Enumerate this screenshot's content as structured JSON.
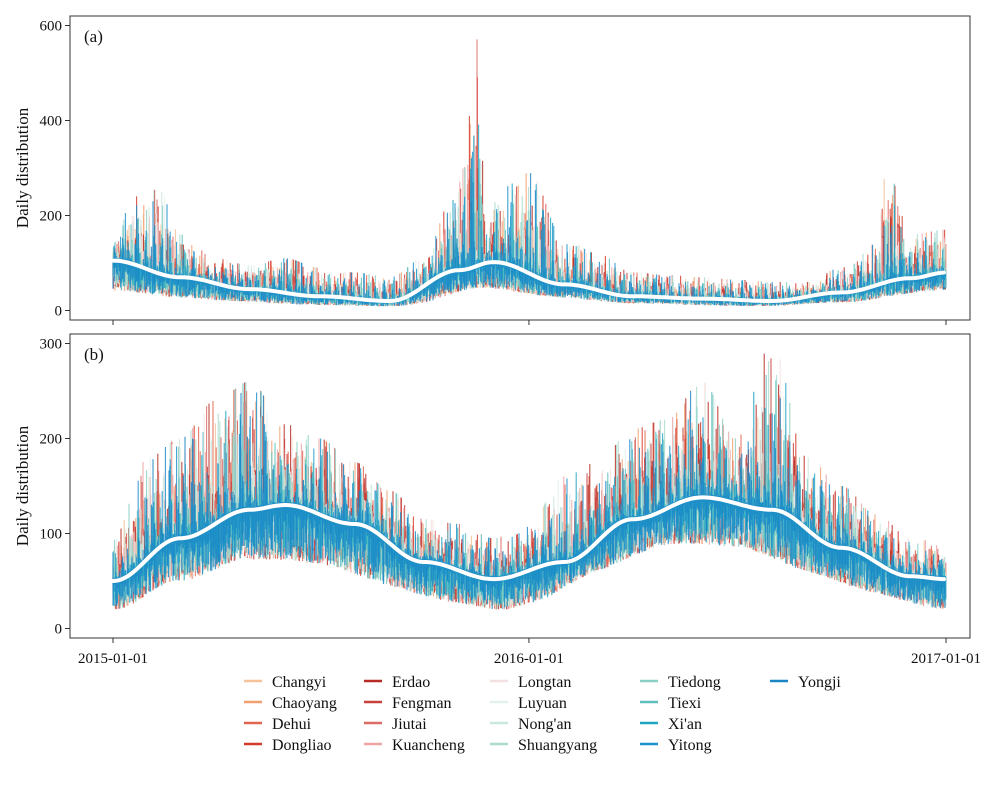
{
  "chart_data": [
    {
      "type": "line",
      "panel_label": "(a)",
      "ylabel": "Daily distribution",
      "xlim": [
        "2015-01-01",
        "2017-01-01"
      ],
      "ylim": [
        -20,
        620
      ],
      "yticks": [
        0,
        200,
        400,
        600
      ],
      "xticks": [],
      "smooth_trend": {
        "x": [
          "2015-01-01",
          "2015-03-01",
          "2015-05-01",
          "2015-07-01",
          "2015-09-01",
          "2015-11-01",
          "2015-12-01",
          "2016-02-01",
          "2016-04-01",
          "2016-06-01",
          "2016-08-01",
          "2016-10-01",
          "2016-12-01",
          "2017-01-01"
        ],
        "y": [
          105,
          70,
          45,
          30,
          20,
          85,
          102,
          55,
          30,
          25,
          20,
          38,
          68,
          80
        ]
      },
      "stations_upper_envelope": {
        "x": [
          "2015-01-01",
          "2015-01-20",
          "2015-02-10",
          "2015-03-01",
          "2015-04-01",
          "2015-05-01",
          "2015-06-01",
          "2015-07-01",
          "2015-08-01",
          "2015-09-01",
          "2015-10-01",
          "2015-10-25",
          "2015-11-05",
          "2015-11-15",
          "2015-11-25",
          "2015-12-10",
          "2016-01-01",
          "2016-02-01",
          "2016-03-01",
          "2016-04-01",
          "2016-05-01",
          "2016-06-01",
          "2016-07-01",
          "2016-08-01",
          "2016-09-01",
          "2016-10-01",
          "2016-11-01",
          "2016-11-10",
          "2016-12-01",
          "2017-01-01"
        ],
        "y": [
          150,
          240,
          255,
          160,
          110,
          95,
          110,
          90,
          80,
          70,
          110,
          230,
          300,
          590,
          200,
          260,
          290,
          150,
          120,
          80,
          75,
          70,
          65,
          60,
          60,
          90,
          140,
          300,
          160,
          170
        ]
      },
      "stations_lower_envelope": {
        "x": [
          "2015-01-01",
          "2015-04-01",
          "2015-07-01",
          "2015-10-01",
          "2015-11-15",
          "2016-01-01",
          "2016-04-01",
          "2016-07-01",
          "2016-10-01",
          "2017-01-01"
        ],
        "y": [
          20,
          10,
          5,
          5,
          30,
          20,
          10,
          5,
          10,
          30
        ]
      }
    },
    {
      "type": "line",
      "panel_label": "(b)",
      "ylabel": "Daily distribution",
      "xlim": [
        "2015-01-01",
        "2017-01-01"
      ],
      "ylim": [
        -10,
        310
      ],
      "yticks": [
        0,
        100,
        200,
        300
      ],
      "xticks": [
        "2015-01-01",
        "2016-01-01",
        "2017-01-01"
      ],
      "smooth_trend": {
        "x": [
          "2015-01-01",
          "2015-03-01",
          "2015-05-01",
          "2015-06-01",
          "2015-08-01",
          "2015-10-01",
          "2015-12-01",
          "2016-02-01",
          "2016-04-01",
          "2016-06-01",
          "2016-08-01",
          "2016-10-01",
          "2016-12-01",
          "2017-01-01"
        ],
        "y": [
          50,
          95,
          125,
          130,
          110,
          70,
          52,
          70,
          115,
          138,
          125,
          85,
          55,
          52
        ]
      },
      "stations_upper_envelope": {
        "x": [
          "2015-01-01",
          "2015-02-01",
          "2015-03-01",
          "2015-04-01",
          "2015-05-01",
          "2015-06-01",
          "2015-07-01",
          "2015-08-01",
          "2015-09-01",
          "2015-10-01",
          "2015-11-01",
          "2015-12-01",
          "2016-01-01",
          "2016-02-01",
          "2016-03-01",
          "2016-04-01",
          "2016-05-01",
          "2016-06-01",
          "2016-07-01",
          "2016-08-01",
          "2016-09-01",
          "2016-10-01",
          "2016-11-01",
          "2016-12-01",
          "2017-01-01"
        ],
        "y": [
          95,
          180,
          200,
          240,
          260,
          215,
          200,
          175,
          145,
          115,
          110,
          95,
          110,
          160,
          175,
          210,
          220,
          260,
          200,
          300,
          180,
          150,
          120,
          95,
          90
        ]
      },
      "stations_lower_envelope": {
        "x": [
          "2015-01-01",
          "2015-03-01",
          "2015-05-01",
          "2015-07-01",
          "2015-09-01",
          "2015-11-01",
          "2015-12-15",
          "2016-01-01",
          "2016-03-01",
          "2016-05-01",
          "2016-07-01",
          "2016-09-01",
          "2016-11-01",
          "2017-01-01"
        ],
        "y": [
          10,
          35,
          55,
          50,
          30,
          15,
          8,
          15,
          50,
          75,
          70,
          45,
          25,
          10
        ]
      }
    }
  ],
  "legend": {
    "entries": [
      {
        "name": "Changyi",
        "color": "#F5C29A"
      },
      {
        "name": "Chaoyang",
        "color": "#F0A070"
      },
      {
        "name": "Dehui",
        "color": "#E0654E"
      },
      {
        "name": "Dongliao",
        "color": "#D53A2C"
      },
      {
        "name": "Erdao",
        "color": "#B72B26"
      },
      {
        "name": "Fengman",
        "color": "#C8403A"
      },
      {
        "name": "Jiutai",
        "color": "#DB6C66"
      },
      {
        "name": "Kuancheng",
        "color": "#EFA3A3"
      },
      {
        "name": "Longtan",
        "color": "#F3E1E1"
      },
      {
        "name": "Luyuan",
        "color": "#E3F1EA"
      },
      {
        "name": "Nong'an",
        "color": "#C9E8DD"
      },
      {
        "name": "Shuangyang",
        "color": "#A9DCCF"
      },
      {
        "name": "Tiedong",
        "color": "#8ACFC4"
      },
      {
        "name": "Tiexi",
        "color": "#5EC0BE"
      },
      {
        "name": "Xi'an",
        "color": "#1FA5C4"
      },
      {
        "name": "Yitong",
        "color": "#1C91CC"
      },
      {
        "name": "Yongji",
        "color": "#1A86C6"
      }
    ]
  },
  "colors": {
    "trend_line": "#FFFFFF",
    "frame": "#333333"
  }
}
